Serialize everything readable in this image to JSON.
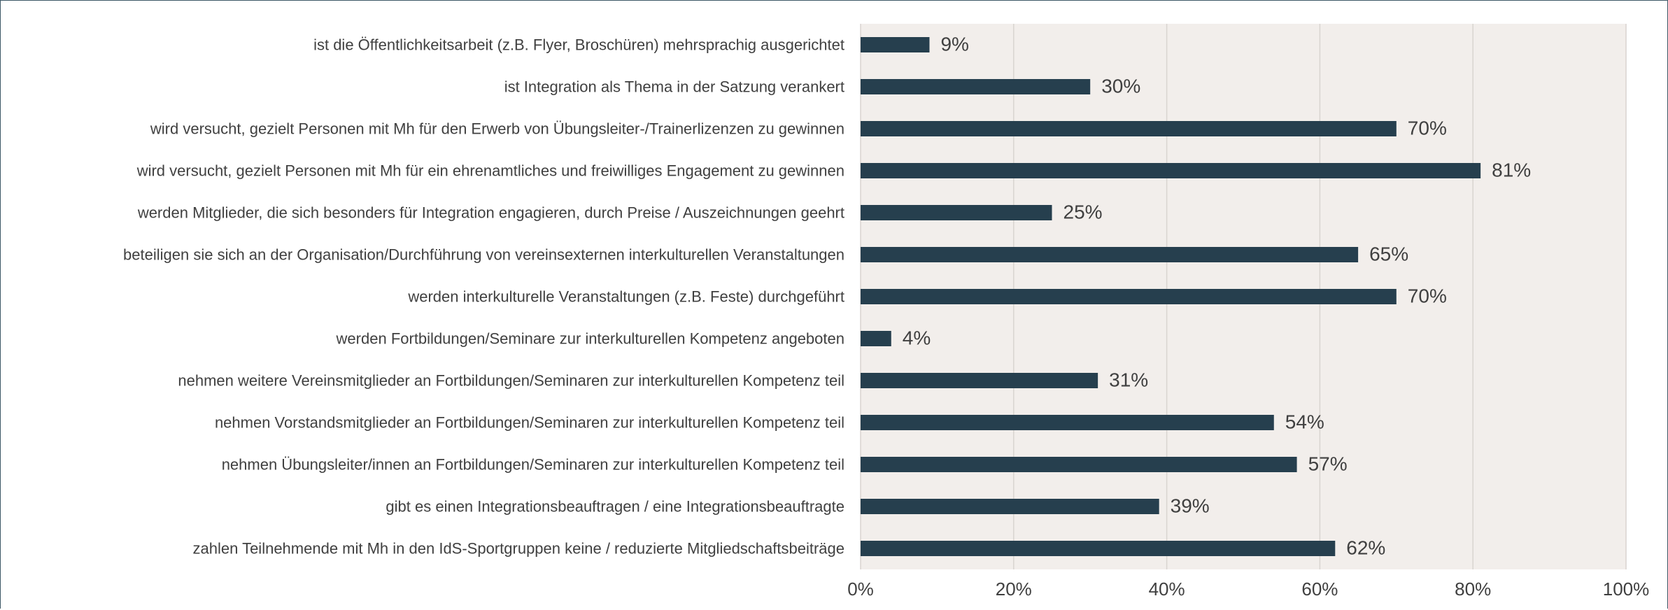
{
  "chart_data": {
    "type": "barh",
    "categories": [
      "ist die Öffentlichkeitsarbeit (z.B. Flyer, Broschüren) mehrsprachig ausgerichtet",
      "ist Integration als Thema in der Satzung verankert",
      "wird versucht, gezielt Personen mit Mh für den Erwerb von Übungsleiter-/Trainerlizenzen zu gewinnen",
      "wird versucht, gezielt Personen mit Mh für ein ehrenamtliches und freiwilliges Engagement zu gewinnen",
      "werden Mitglieder, die sich besonders für Integration engagieren, durch Preise / Auszeichnungen geehrt",
      "beteiligen sie sich an der Organisation/Durchführung von vereinsexternen interkulturellen Veranstaltungen",
      "werden interkulturelle Veranstaltungen (z.B. Feste) durchgeführt",
      "werden Fortbildungen/Seminare zur interkulturellen Kompetenz angeboten",
      "nehmen weitere Vereinsmitglieder an Fortbildungen/Seminaren zur interkulturellen Kompetenz teil",
      "nehmen Vorstandsmitglieder an Fortbildungen/Seminaren zur interkulturellen Kompetenz teil",
      "nehmen Übungsleiter/innen an Fortbildungen/Seminaren zur interkulturellen Kompetenz teil",
      "gibt es einen Integrationsbeauftragen / eine Integrationsbeauftragte",
      "zahlen Teilnehmende mit Mh in den IdS-Sportgruppen keine / reduzierte Mitgliedschaftsbeiträge"
    ],
    "values": [
      9,
      30,
      70,
      81,
      25,
      65,
      70,
      4,
      31,
      54,
      57,
      39,
      62
    ],
    "value_labels": [
      "9%",
      "30%",
      "70%",
      "81%",
      "25%",
      "65%",
      "70%",
      "4%",
      "31%",
      "54%",
      "57%",
      "39%",
      "62%"
    ],
    "color": "#263f4e",
    "xlim": [
      0,
      100
    ],
    "xticks": [
      {
        "value": 0,
        "label": "0%"
      },
      {
        "value": 20,
        "label": "20%"
      },
      {
        "value": 40,
        "label": "40%"
      },
      {
        "value": 60,
        "label": "60%"
      },
      {
        "value": 80,
        "label": "80%"
      },
      {
        "value": 100,
        "label": "100%"
      }
    ],
    "grid": true
  }
}
